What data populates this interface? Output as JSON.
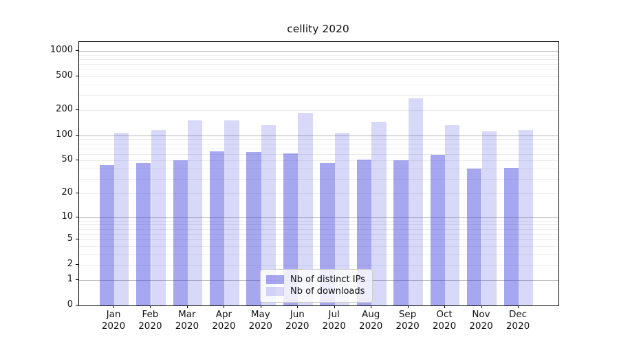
{
  "title": "cellity 2020",
  "legend": {
    "items": [
      {
        "label": "Nb of distinct IPs"
      },
      {
        "label": "Nb of downloads"
      }
    ]
  },
  "colors": {
    "bar_ips": "rgba(59,59,222,0.45)",
    "bar_downloads": "rgba(59,59,222,0.2)",
    "grid_major": "#b2b2b2",
    "grid_minor": "#ebebeb",
    "axis_spine": "#000000",
    "text": "#111111"
  },
  "chart_data": {
    "type": "bar",
    "title": "cellity 2020",
    "categories": [
      "Jan",
      "Feb",
      "Mar",
      "Apr",
      "May",
      "Jun",
      "Jul",
      "Aug",
      "Sep",
      "Oct",
      "Nov",
      "Dec"
    ],
    "year_label": "2020",
    "series": [
      {
        "name": "Nb of distinct IPs",
        "color": "rgba(59,59,222,0.45)",
        "values": [
          44,
          47,
          50,
          64,
          63,
          61,
          47,
          51,
          50,
          59,
          40,
          41
        ]
      },
      {
        "name": "Nb of downloads",
        "color": "rgba(59,59,222,0.2)",
        "values": [
          108,
          116,
          151,
          151,
          132,
          186,
          108,
          145,
          277,
          132,
          112,
          116
        ]
      }
    ],
    "xlabel": "",
    "ylabel": "",
    "yscale": "symlog",
    "y_ticks": [
      0,
      1,
      2,
      5,
      10,
      20,
      50,
      100,
      200,
      500,
      1000
    ],
    "ylim": [
      0,
      1275
    ],
    "grid": true,
    "grid_major_at": [
      1,
      10,
      100,
      1000
    ],
    "legend_position": "lower center"
  }
}
